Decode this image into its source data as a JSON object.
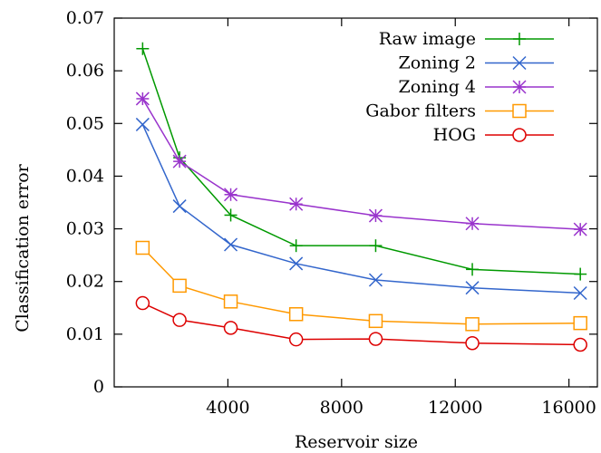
{
  "chart_data": {
    "type": "line",
    "title": "",
    "xlabel": "Reservoir size",
    "ylabel": "Classification error",
    "xlim": [
      0,
      17000
    ],
    "ylim": [
      0,
      0.07
    ],
    "x_ticks": [
      {
        "value": 4000,
        "label": "4000"
      },
      {
        "value": 8000,
        "label": "8000"
      },
      {
        "value": 12000,
        "label": "12000"
      },
      {
        "value": 16000,
        "label": "16000"
      }
    ],
    "y_ticks": [
      {
        "value": 0,
        "label": "0"
      },
      {
        "value": 0.01,
        "label": "0.01"
      },
      {
        "value": 0.02,
        "label": "0.02"
      },
      {
        "value": 0.03,
        "label": "0.03"
      },
      {
        "value": 0.04,
        "label": "0.04"
      },
      {
        "value": 0.05,
        "label": "0.05"
      },
      {
        "value": 0.06,
        "label": "0.06"
      },
      {
        "value": 0.07,
        "label": "0.07"
      }
    ],
    "x": [
      1000,
      2300,
      4100,
      6400,
      9200,
      12600,
      16400
    ],
    "grid": false,
    "legend_position": "top-right",
    "series": [
      {
        "name": "Raw image",
        "marker": "plus",
        "color": "#009900",
        "values": [
          0.0642,
          0.0435,
          0.0326,
          0.0268,
          0.0268,
          0.0223,
          0.0214
        ]
      },
      {
        "name": "Zoning 2",
        "marker": "x",
        "color": "#3366cc",
        "values": [
          0.0498,
          0.0343,
          0.027,
          0.0234,
          0.0203,
          0.0188,
          0.0178
        ]
      },
      {
        "name": "Zoning 4",
        "marker": "star",
        "color": "#9933cc",
        "values": [
          0.0547,
          0.0428,
          0.0365,
          0.0347,
          0.0325,
          0.031,
          0.0299
        ]
      },
      {
        "name": "Gabor filters",
        "marker": "square",
        "color": "#ff9900",
        "values": [
          0.0264,
          0.0192,
          0.0162,
          0.0138,
          0.0125,
          0.0119,
          0.0121
        ]
      },
      {
        "name": "HOG",
        "marker": "circle",
        "color": "#dd0000",
        "values": [
          0.0159,
          0.0127,
          0.0112,
          0.009,
          0.0091,
          0.0083,
          0.008
        ]
      }
    ]
  }
}
